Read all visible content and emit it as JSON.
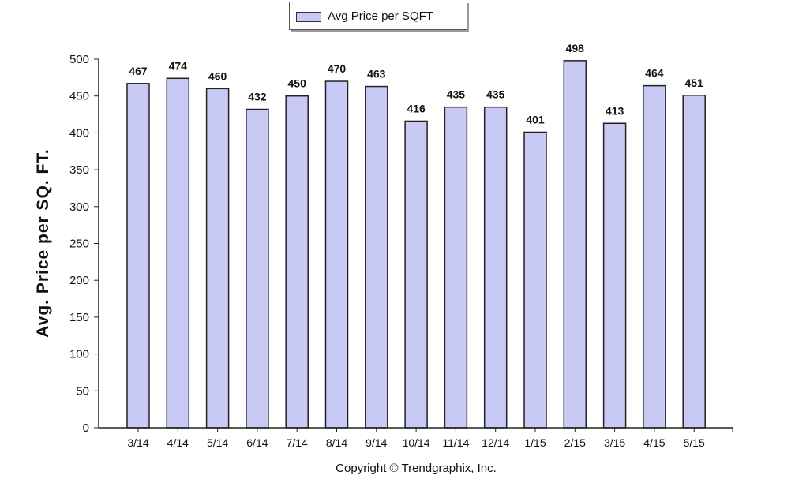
{
  "legend": {
    "label": "Avg Price per SQFT",
    "swatch_color": "#c9c9f5"
  },
  "copyright": "Copyright © Trendgraphix, Inc.",
  "chart_data": {
    "type": "bar",
    "title": "",
    "xlabel": "",
    "ylabel": "Avg. Price per SQ. FT.",
    "ylim": [
      0,
      500
    ],
    "yticks": [
      0,
      50,
      100,
      150,
      200,
      250,
      300,
      350,
      400,
      450,
      500
    ],
    "grid": false,
    "legend_position": "top-center",
    "categories": [
      "3/14",
      "4/14",
      "5/14",
      "6/14",
      "7/14",
      "8/14",
      "9/14",
      "10/14",
      "11/14",
      "12/14",
      "1/15",
      "2/15",
      "3/15",
      "4/15",
      "5/15"
    ],
    "series": [
      {
        "name": "Avg Price per SQFT",
        "color": "#c9c9f5",
        "values": [
          467,
          474,
          460,
          432,
          450,
          470,
          463,
          416,
          435,
          435,
          401,
          498,
          413,
          464,
          451
        ]
      }
    ]
  }
}
